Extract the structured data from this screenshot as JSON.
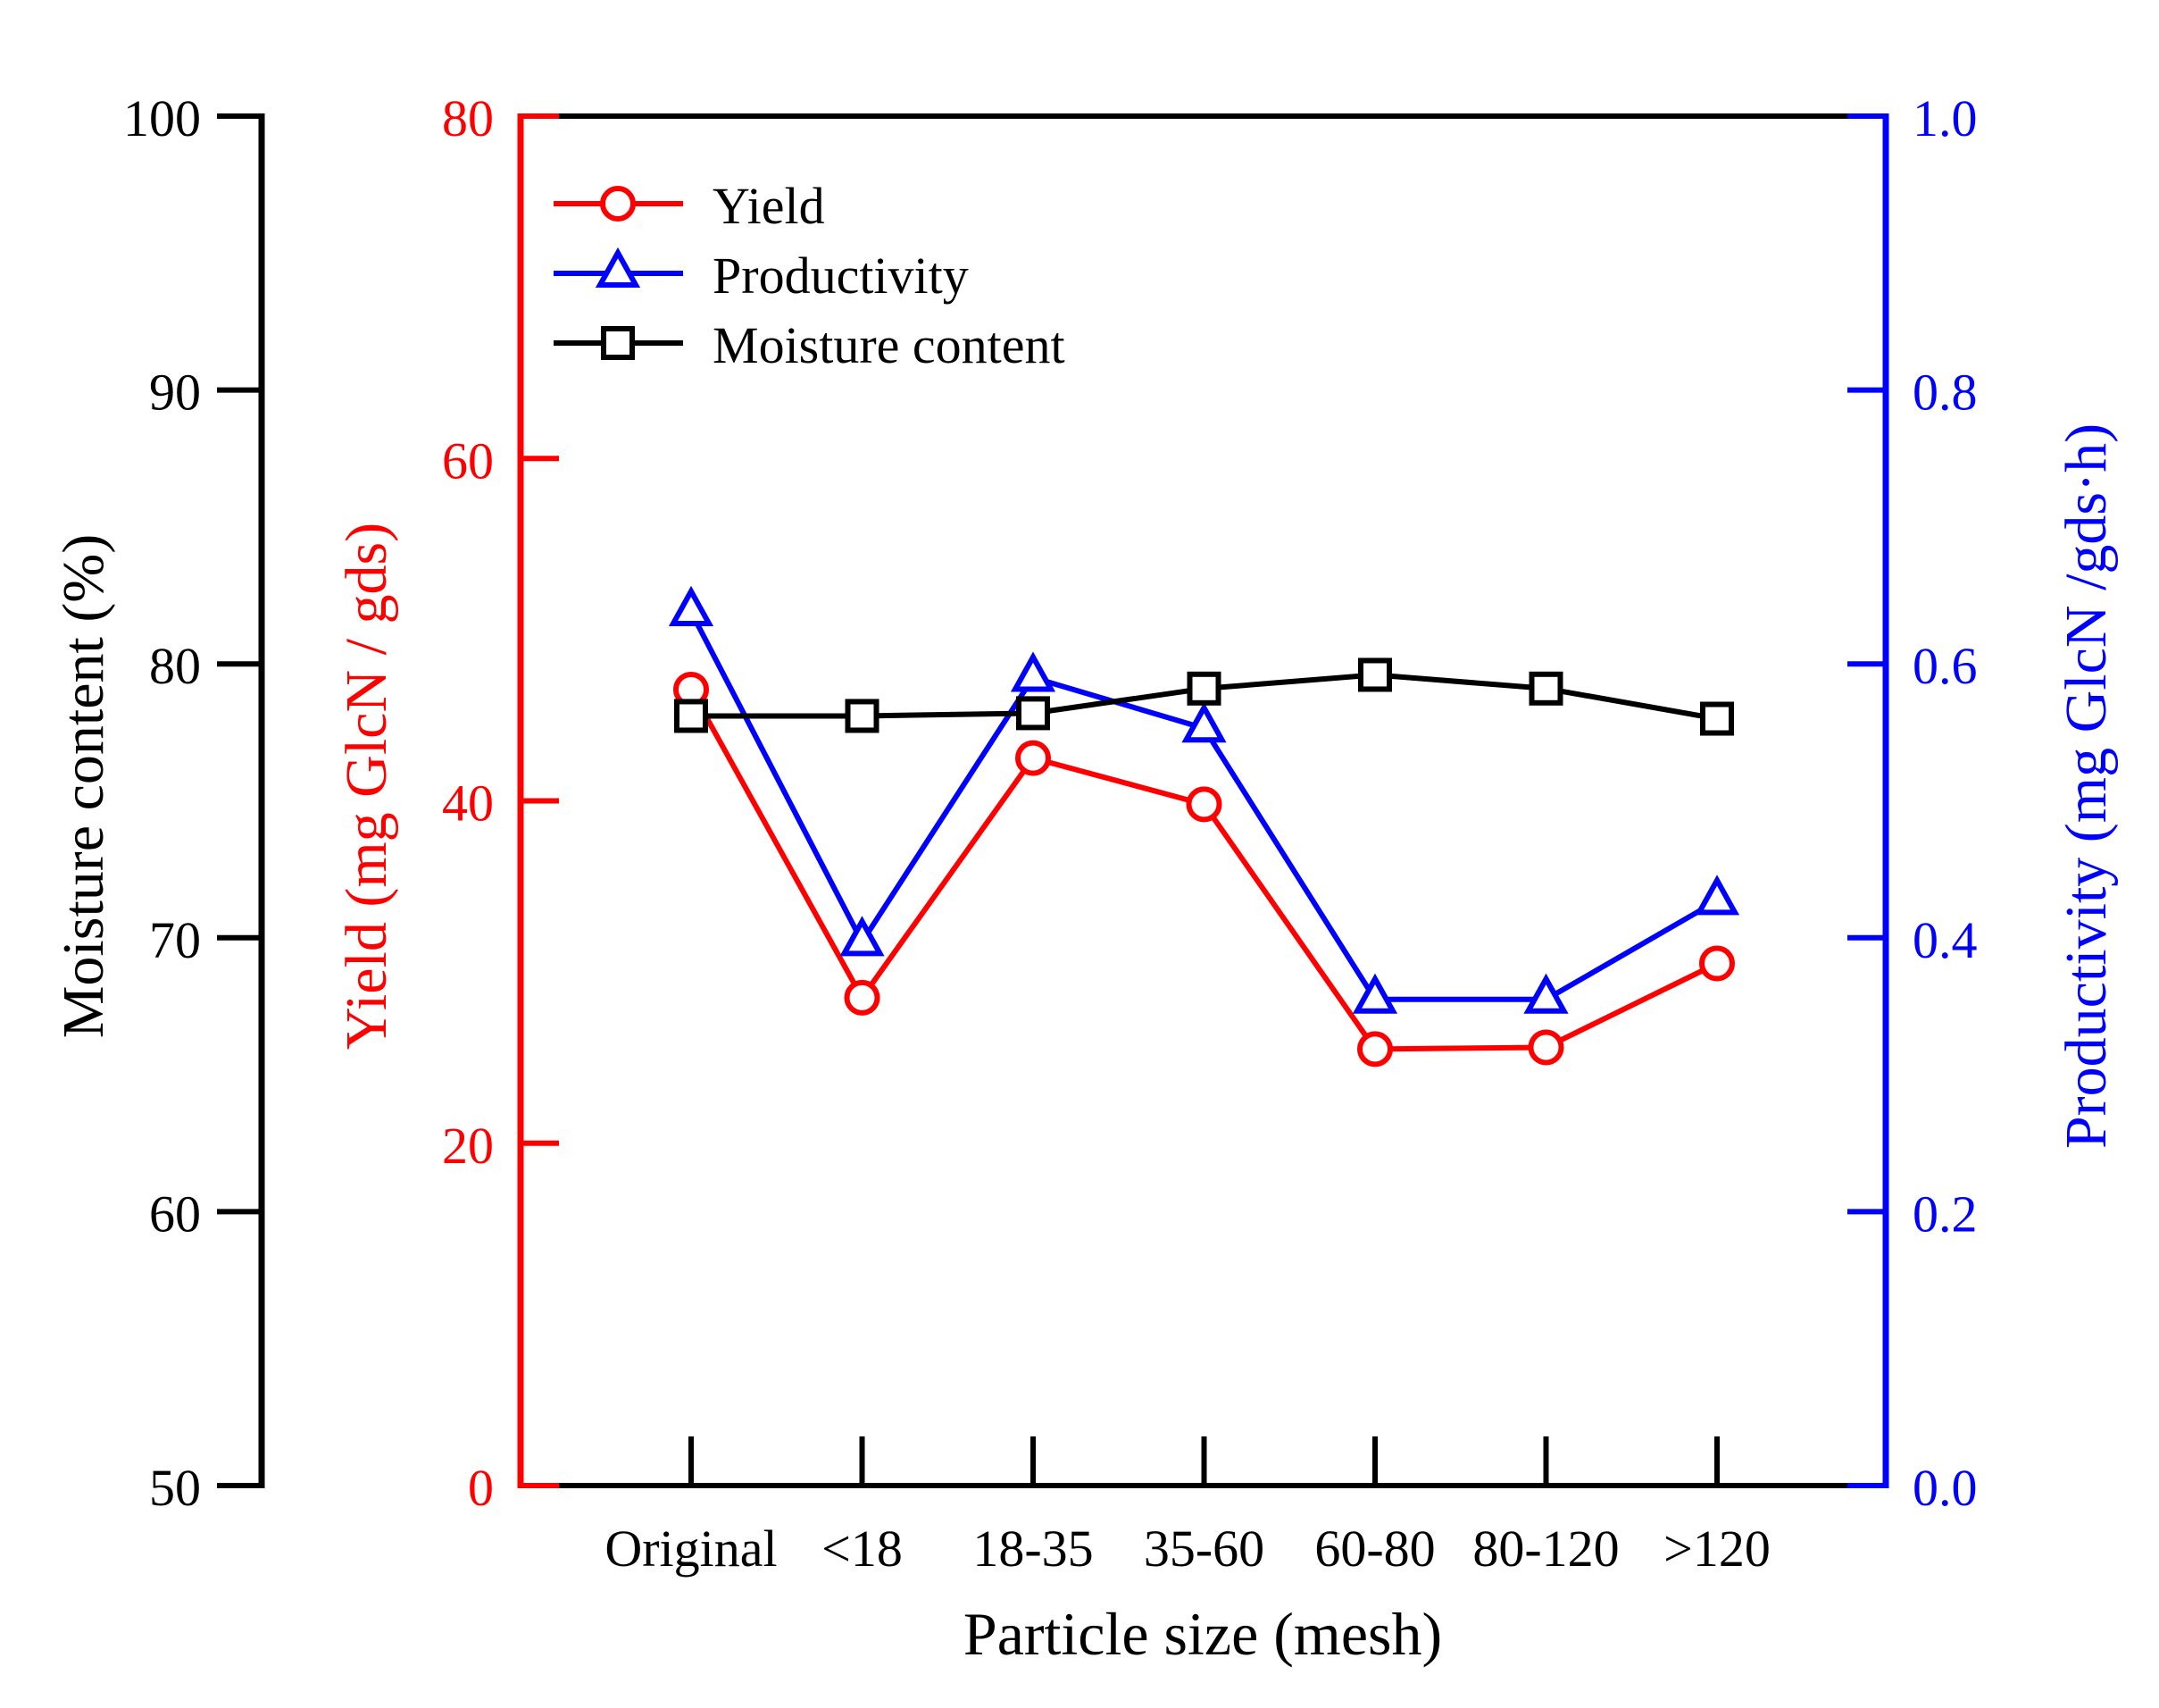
{
  "chart_data": {
    "type": "line",
    "xlabel": "Particle size (mesh)",
    "categories": [
      "Original",
      "<18",
      "18-35",
      "35-60",
      "60-80",
      "80-120",
      ">120"
    ],
    "axes": {
      "moisture": {
        "label": "Moisture content (%)",
        "ylim": [
          50,
          100
        ],
        "ticks": [
          50,
          60,
          70,
          80,
          90,
          100
        ],
        "tick_labels": [
          "50",
          "60",
          "70",
          "80",
          "90",
          "100"
        ],
        "color": "#000000"
      },
      "yield": {
        "label": "Yield (mg GlcN / gds)",
        "ylim": [
          0,
          80
        ],
        "ticks": [
          0,
          20,
          40,
          60,
          80
        ],
        "tick_labels": [
          "0",
          "20",
          "40",
          "60",
          "80"
        ],
        "color": "#ff0000"
      },
      "productivity": {
        "label": "Productivity (mg GlcN /gds·h)",
        "ylim": [
          0,
          1.0
        ],
        "ticks": [
          0,
          0.2,
          0.4,
          0.6,
          0.8,
          1.0
        ],
        "tick_labels": [
          "0.0",
          "0.2",
          "0.4",
          "0.6",
          "0.8",
          "1.0"
        ],
        "color": "#0000ff"
      }
    },
    "series": [
      {
        "name": "Yield",
        "axis": "yield",
        "marker": "circle",
        "color": "#ff0000",
        "values": [
          46.5,
          28.5,
          42.5,
          39.8,
          25.5,
          25.6,
          30.5
        ]
      },
      {
        "name": "Productivity",
        "axis": "productivity",
        "marker": "triangle",
        "color": "#0000ff",
        "values": [
          0.638,
          0.397,
          0.59,
          0.553,
          0.355,
          0.355,
          0.427
        ]
      },
      {
        "name": "Moisture content",
        "axis": "moisture",
        "marker": "square",
        "color": "#000000",
        "values": [
          78.1,
          78.1,
          78.2,
          79.1,
          79.6,
          79.1,
          78.0
        ]
      }
    ],
    "legend": {
      "position": "top-left",
      "entries": [
        "Yield",
        "Productivity",
        "Moisture content"
      ]
    }
  }
}
